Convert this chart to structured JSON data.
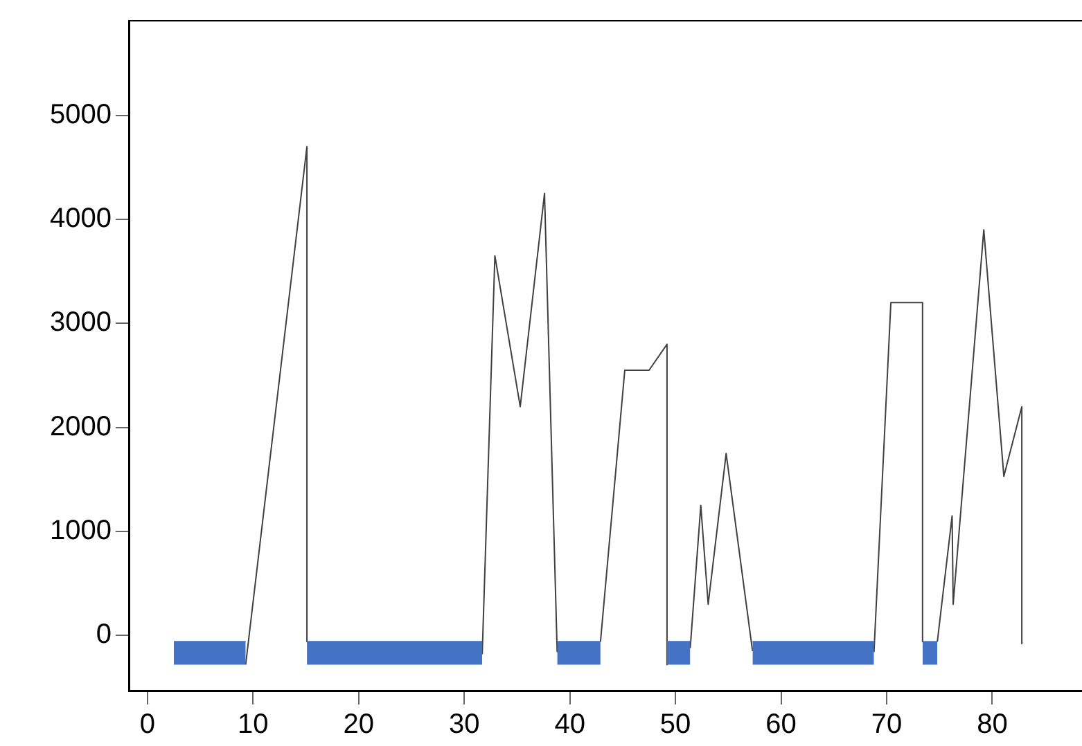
{
  "chart_data": {
    "type": "line",
    "xlim": [
      -1.7,
      88.5
    ],
    "xticks": [
      0,
      10,
      20,
      30,
      40,
      50,
      60,
      70,
      80
    ],
    "ylim": [
      -530,
      5910
    ],
    "yticks": [
      0,
      1000,
      2000,
      3000,
      4000,
      5000
    ],
    "grid": false,
    "legend": false,
    "marker": "none",
    "line_style": "solid",
    "series": [
      {
        "color": "#4472c4",
        "x": [
          2.5,
          9.3
        ],
        "values": [
          -60,
          -60
        ],
        "upper": [
          -60,
          -60
        ],
        "lower": [
          -280,
          -280
        ]
      },
      {
        "color": "#4472c4",
        "x": [
          15.1,
          31.7
        ],
        "values": [
          -60,
          -60
        ],
        "upper": [
          -60,
          -60
        ],
        "lower": [
          -280,
          -280
        ]
      },
      {
        "color": "#4472c4",
        "x": [
          38.8,
          42.9
        ],
        "values": [
          -60,
          -60
        ],
        "upper": [
          -60,
          -60
        ],
        "lower": [
          -280,
          -280
        ]
      },
      {
        "color": "#4472c4",
        "x": [
          49.2,
          51.4
        ],
        "values": [
          -60,
          -60
        ],
        "upper": [
          -60,
          -60
        ],
        "lower": [
          -280,
          -280
        ]
      },
      {
        "color": "#4472c4",
        "x": [
          57.3,
          68.8
        ],
        "values": [
          -60,
          -60
        ],
        "upper": [
          -60,
          -60
        ],
        "lower": [
          -280,
          -280
        ]
      },
      {
        "color": "#4472c4",
        "x": [
          73.4,
          74.8
        ],
        "values": [
          -60,
          -60
        ],
        "upper": [
          -60,
          -60
        ],
        "lower": [
          -280,
          -280
        ]
      },
      {
        "color": "#404040",
        "x": [
          9.3,
          15.1,
          15.1
        ],
        "values": [
          -280,
          4700,
          -60
        ]
      },
      {
        "color": "#404040",
        "x": [
          31.7,
          32.9,
          35.3,
          37.6,
          38.8
        ],
        "values": [
          -180,
          3650,
          2200,
          4250,
          -160
        ]
      },
      {
        "color": "#404040",
        "x": [
          42.9,
          45.2,
          47.5,
          49.2,
          49.2
        ],
        "values": [
          -60,
          2550,
          2550,
          2800,
          -280
        ]
      },
      {
        "color": "#404040",
        "x": [
          51.4,
          52.4,
          53.1,
          54.8,
          57.3
        ],
        "values": [
          -120,
          1250,
          300,
          1750,
          -150
        ]
      },
      {
        "color": "#404040",
        "x": [
          68.8,
          70.4,
          73.4,
          73.4
        ],
        "values": [
          -160,
          3200,
          3200,
          -60
        ]
      },
      {
        "color": "#404040",
        "x": [
          74.8,
          76.2,
          76.3,
          79.2,
          81.1,
          82.8,
          82.8
        ],
        "values": [
          -60,
          1150,
          300,
          3900,
          1530,
          2200,
          -80
        ]
      }
    ]
  }
}
